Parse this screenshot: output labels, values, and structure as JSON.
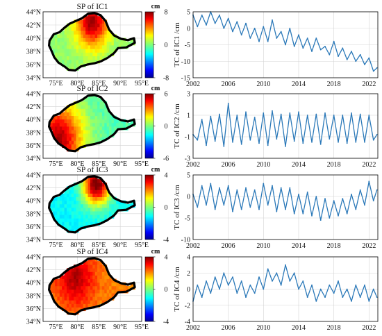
{
  "figure": {
    "map_x_ticks": [
      "75°E",
      "80°E",
      "85°E",
      "90°E",
      "95°E"
    ],
    "map_y_ticks": [
      "44°N",
      "42°N",
      "40°N",
      "38°N",
      "36°N",
      "34°N"
    ],
    "ts_x_ticks": [
      "2002",
      "2006",
      "2010",
      "2014",
      "2018",
      "2022"
    ],
    "colorbar_unit": "cm"
  },
  "chart_data": [
    {
      "type": "heatmap",
      "title": "SP of IC1",
      "xlim": [
        72,
        95
      ],
      "ylim": [
        34,
        44
      ],
      "colorbar": {
        "min": -8,
        "max": 8,
        "ticks": [
          -8,
          0,
          8
        ],
        "unit": "cm"
      },
      "pattern": {
        "base": 0.3,
        "hotspots": [
          {
            "lon": 83.5,
            "lat": 42.5,
            "value": 7.5,
            "radius": 2.6
          }
        ]
      }
    },
    {
      "type": "line",
      "ylabel": "TC of IC1 /cm",
      "xlim": [
        2002,
        2023
      ],
      "ylim": [
        -15,
        5
      ],
      "yticks": [
        -15,
        -10,
        -5,
        0,
        5
      ],
      "x": [
        2002.0,
        2002.5,
        2003.0,
        2003.5,
        2004.0,
        2004.5,
        2005.0,
        2005.5,
        2006.0,
        2006.5,
        2007.0,
        2007.5,
        2008.0,
        2008.5,
        2009.0,
        2009.5,
        2010.0,
        2010.5,
        2011.0,
        2011.5,
        2012.0,
        2012.5,
        2013.0,
        2013.5,
        2014.0,
        2014.5,
        2015.0,
        2015.5,
        2016.0,
        2016.5,
        2017.0,
        2017.5,
        2018.0,
        2018.5,
        2019.0,
        2019.5,
        2020.0,
        2020.5,
        2021.0,
        2021.5,
        2022.0,
        2022.5,
        2022.9
      ],
      "y": [
        4,
        0.5,
        4,
        1,
        5,
        1.5,
        4,
        0,
        3,
        -1,
        2,
        -2,
        1.5,
        -3,
        0,
        -4,
        0.5,
        -4,
        2.5,
        -3,
        -1,
        -5,
        0,
        -5.5,
        -2,
        -6,
        -3,
        -7,
        -3,
        -6.5,
        -5.5,
        -8,
        -4,
        -8.5,
        -6,
        -9.5,
        -7,
        -10,
        -8,
        -11,
        -9,
        -13,
        -12
      ]
    },
    {
      "type": "heatmap",
      "title": "SP of IC2",
      "xlim": [
        72,
        95
      ],
      "ylim": [
        34,
        44
      ],
      "colorbar": {
        "min": -6,
        "max": 6,
        "ticks": [
          -6,
          0,
          6
        ],
        "unit": "cm"
      },
      "pattern": {
        "base": -0.5,
        "hotspots": [
          {
            "lon": 75.5,
            "lat": 37.0,
            "value": 5.5,
            "radius": 4.0
          }
        ]
      }
    },
    {
      "type": "line",
      "ylabel": "TC of IC2 /cm",
      "xlim": [
        2002,
        2023
      ],
      "ylim": [
        -3,
        3
      ],
      "yticks": [
        -3,
        -1,
        1,
        3
      ],
      "x": [
        2002.0,
        2002.5,
        2003.0,
        2003.5,
        2004.0,
        2004.5,
        2005.0,
        2005.5,
        2006.0,
        2006.5,
        2007.0,
        2007.5,
        2008.0,
        2008.5,
        2009.0,
        2009.5,
        2010.0,
        2010.5,
        2011.0,
        2011.5,
        2012.0,
        2012.5,
        2013.0,
        2013.5,
        2014.0,
        2014.5,
        2015.0,
        2015.5,
        2016.0,
        2016.5,
        2017.0,
        2017.5,
        2018.0,
        2018.5,
        2019.0,
        2019.5,
        2020.0,
        2020.5,
        2021.0,
        2021.5,
        2022.0,
        2022.5,
        2022.9
      ],
      "y": [
        -0.8,
        -1.3,
        0.6,
        -1.8,
        0.9,
        -1.4,
        1.1,
        -1.9,
        2.1,
        -1.5,
        1.0,
        -1.7,
        1.3,
        -1.3,
        0.8,
        -1.6,
        1.2,
        -1.8,
        1.4,
        -1.2,
        1.1,
        -1.9,
        1.2,
        -1.4,
        1.3,
        -1.6,
        1.0,
        -1.5,
        1.1,
        -1.7,
        1.2,
        -1.2,
        1.0,
        -1.5,
        1.0,
        -1.6,
        1.2,
        -1.5,
        1.1,
        -1.5,
        1.0,
        -1.3,
        -0.8
      ]
    },
    {
      "type": "heatmap",
      "title": "SP of IC3",
      "xlim": [
        72,
        95
      ],
      "ylim": [
        34,
        44
      ],
      "colorbar": {
        "min": -4,
        "max": 4,
        "ticks": [
          -4,
          0,
          4
        ],
        "unit": "cm"
      },
      "pattern": {
        "base": -1.0,
        "hotspots": [
          {
            "lon": 84.5,
            "lat": 42.6,
            "value": 4.2,
            "radius": 2.2
          }
        ]
      }
    },
    {
      "type": "line",
      "ylabel": "TC of IC3 /cm",
      "xlim": [
        2002,
        2023
      ],
      "ylim": [
        -10,
        5
      ],
      "yticks": [
        -10,
        -5,
        0,
        5
      ],
      "x": [
        2002.0,
        2002.5,
        2003.0,
        2003.5,
        2004.0,
        2004.5,
        2005.0,
        2005.5,
        2006.0,
        2006.5,
        2007.0,
        2007.5,
        2008.0,
        2008.5,
        2009.0,
        2009.5,
        2010.0,
        2010.5,
        2011.0,
        2011.5,
        2012.0,
        2012.5,
        2013.0,
        2013.5,
        2014.0,
        2014.5,
        2015.0,
        2015.5,
        2016.0,
        2016.5,
        2017.0,
        2017.5,
        2018.0,
        2018.5,
        2019.0,
        2019.5,
        2020.0,
        2020.5,
        2021.0,
        2021.5,
        2022.0,
        2022.5,
        2022.9
      ],
      "y": [
        0.5,
        -2.5,
        2.5,
        -2.0,
        3.0,
        -3.0,
        2.0,
        -2.0,
        2.5,
        -3.5,
        1.5,
        -3.0,
        2.0,
        -2.5,
        1.5,
        -3.0,
        3.0,
        -2.0,
        2.5,
        -3.5,
        2.0,
        -3.0,
        2.0,
        -4.0,
        0.5,
        -4.0,
        1.0,
        -4.5,
        0.0,
        -5.5,
        -0.5,
        -5.0,
        -1.0,
        -4.5,
        -0.5,
        -4.0,
        0.5,
        -3.0,
        1.5,
        -2.0,
        3.5,
        -1.0,
        1.5
      ]
    },
    {
      "type": "heatmap",
      "title": "SP of IC4",
      "xlim": [
        72,
        95
      ],
      "ylim": [
        34,
        44
      ],
      "colorbar": {
        "min": -4,
        "max": 4,
        "ticks": [
          -4,
          0,
          4
        ],
        "unit": "cm"
      },
      "pattern": {
        "base": 2.0,
        "hotspots": [
          {
            "lon": 79.5,
            "lat": 41.0,
            "value": 3.6,
            "radius": 3.0
          }
        ]
      }
    },
    {
      "type": "line",
      "ylabel": "TC of IC4 /cm",
      "xlim": [
        2002,
        2023
      ],
      "ylim": [
        -4,
        4
      ],
      "yticks": [
        -4,
        -2,
        0,
        2,
        4
      ],
      "x": [
        2002.0,
        2002.5,
        2003.0,
        2003.5,
        2004.0,
        2004.5,
        2005.0,
        2005.5,
        2006.0,
        2006.5,
        2007.0,
        2007.5,
        2008.0,
        2008.5,
        2009.0,
        2009.5,
        2010.0,
        2010.5,
        2011.0,
        2011.5,
        2012.0,
        2012.5,
        2013.0,
        2013.5,
        2014.0,
        2014.5,
        2015.0,
        2015.5,
        2016.0,
        2016.5,
        2017.0,
        2017.5,
        2018.0,
        2018.5,
        2019.0,
        2019.5,
        2020.0,
        2020.5,
        2021.0,
        2021.5,
        2022.0,
        2022.5,
        2022.9
      ],
      "y": [
        -1.5,
        0.5,
        -1.0,
        1.0,
        -0.5,
        1.5,
        0.0,
        2.0,
        0.5,
        1.5,
        -0.5,
        1.0,
        -1.0,
        0.5,
        -0.5,
        1.5,
        0.0,
        2.5,
        1.0,
        2.0,
        0.5,
        3.0,
        1.0,
        2.0,
        0.0,
        1.0,
        -1.0,
        0.5,
        -1.5,
        0.0,
        -1.0,
        0.5,
        -0.5,
        1.0,
        -1.0,
        0.0,
        -1.5,
        0.5,
        -1.0,
        0.5,
        -1.5,
        0.0,
        -1.0
      ]
    }
  ]
}
